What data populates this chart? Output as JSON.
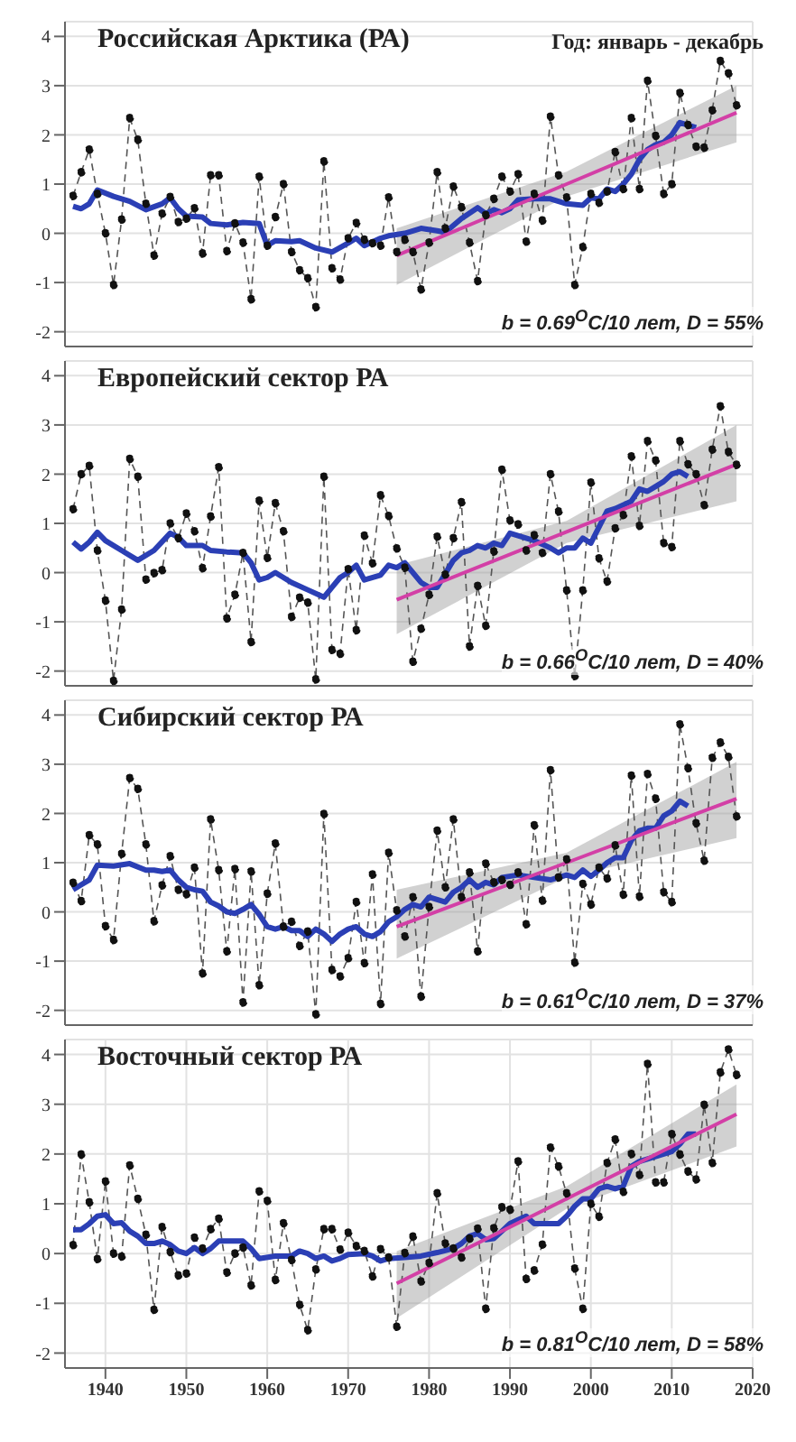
{
  "chart_data": [
    {
      "type": "line",
      "title": "Российская Арктика (РА)",
      "subtitle": "Год: январь - декабрь",
      "annotations": [
        "b = 0.69$^{O}$C/10 лет, D = 55%"
      ],
      "xlim": [
        1935,
        2020
      ],
      "xticks": [
        1940,
        1950,
        1960,
        1970,
        1980,
        1990,
        2000,
        2010,
        2020
      ],
      "ylim": [
        -2.3,
        4.3
      ],
      "yticks": [
        -2,
        -1,
        0,
        1,
        2,
        3,
        4
      ],
      "grid": true,
      "tick_labels": "y",
      "x": [
        1936,
        1937,
        1938,
        1939,
        1940,
        1941,
        1942,
        1943,
        1944,
        1945,
        1946,
        1947,
        1948,
        1949,
        1950,
        1951,
        1952,
        1953,
        1954,
        1955,
        1956,
        1957,
        1958,
        1959,
        1960,
        1961,
        1962,
        1963,
        1964,
        1965,
        1966,
        1967,
        1968,
        1969,
        1970,
        1971,
        1972,
        1973,
        1974,
        1975,
        1976,
        1977,
        1978,
        1979,
        1980,
        1981,
        1982,
        1983,
        1984,
        1985,
        1986,
        1987,
        1988,
        1989,
        1990,
        1991,
        1992,
        1993,
        1994,
        1995,
        1996,
        1997,
        1998,
        1999,
        2000,
        2001,
        2002,
        2003,
        2004,
        2005,
        2006,
        2007,
        2008,
        2009,
        2010,
        2011,
        2012,
        2013,
        2014,
        2015,
        2016,
        2017,
        2018
      ],
      "series": [
        {
          "color": "#555555",
          "marker": "circle",
          "line_style": "dashed",
          "values": [
            0.76,
            1.24,
            1.7,
            0.8,
            0.0,
            -1.05,
            0.28,
            2.34,
            1.9,
            0.6,
            -0.45,
            0.4,
            0.74,
            0.23,
            0.3,
            0.51,
            -0.41,
            1.18,
            1.18,
            -0.36,
            0.2,
            -0.19,
            -1.34,
            1.15,
            -0.25,
            0.33,
            1.0,
            -0.38,
            -0.75,
            -0.91,
            -1.5,
            1.46,
            -0.71,
            -0.94,
            -0.1,
            0.21,
            -0.13,
            -0.2,
            -0.25,
            0.73,
            -0.38,
            -0.13,
            -0.38,
            -1.14,
            -0.19,
            1.24,
            0.1,
            0.95,
            0.53,
            -0.19,
            -0.97,
            0.37,
            0.7,
            1.15,
            0.85,
            1.2,
            -0.17,
            0.8,
            0.26,
            2.37,
            1.18,
            0.73,
            -1.05,
            -0.28,
            0.8,
            0.62,
            0.85,
            1.65,
            0.9,
            2.34,
            0.9,
            3.1,
            1.98,
            0.8,
            1.0,
            2.85,
            2.2,
            1.76,
            1.74,
            2.5,
            3.5,
            3.25,
            2.6
          ]
        },
        {
          "color": "#2b3fb5",
          "marker": "none",
          "line_style": "solid",
          "x": [
            1936,
            1937,
            1938,
            1939,
            1941,
            1943,
            1945,
            1947,
            1948,
            1949,
            1950,
            1952,
            1953,
            1955,
            1957,
            1959,
            1960,
            1961,
            1963,
            1964,
            1966,
            1968,
            1970,
            1971,
            1972,
            1974,
            1975,
            1977,
            1979,
            1981,
            1982,
            1984,
            1986,
            1987,
            1988,
            1989,
            1990,
            1991,
            1993,
            1995,
            1997,
            1999,
            2000,
            2001,
            2002,
            2003,
            2004,
            2005,
            2006,
            2007,
            2008,
            2009,
            2010,
            2011,
            2012,
            2013
          ],
          "values": [
            0.55,
            0.5,
            0.6,
            0.88,
            0.75,
            0.65,
            0.48,
            0.6,
            0.72,
            0.5,
            0.35,
            0.33,
            0.2,
            0.17,
            0.22,
            0.2,
            -0.25,
            -0.15,
            -0.17,
            -0.15,
            -0.3,
            -0.38,
            -0.2,
            -0.1,
            -0.25,
            -0.1,
            -0.05,
            0.0,
            0.1,
            0.05,
            0.02,
            0.3,
            0.52,
            0.4,
            0.48,
            0.42,
            0.5,
            0.68,
            0.7,
            0.7,
            0.6,
            0.57,
            0.72,
            0.7,
            0.9,
            0.85,
            1.0,
            1.2,
            1.5,
            1.7,
            1.8,
            1.85,
            2.0,
            2.25,
            2.2,
            2.15
          ]
        },
        {
          "color": "#d33fa6",
          "marker": "none",
          "line_style": "solid",
          "x": [
            1976,
            1997,
            2018
          ],
          "values": [
            -0.45,
            1.0,
            2.45
          ],
          "lower": [
            -1.05,
            0.75,
            1.85
          ],
          "upper": [
            0.1,
            1.25,
            3.0
          ]
        }
      ]
    },
    {
      "type": "line",
      "title": "Европейский сектор РА",
      "annotations": [
        "b = 0.66$^{O}$C/10 лет, D = 40%"
      ],
      "xlim": [
        1935,
        2020
      ],
      "xticks": [
        1940,
        1950,
        1960,
        1970,
        1980,
        1990,
        2000,
        2010,
        2020
      ],
      "ylim": [
        -2.3,
        4.3
      ],
      "yticks": [
        -2,
        -1,
        0,
        1,
        2,
        3,
        4
      ],
      "grid": true,
      "tick_labels": "y",
      "x": [
        1936,
        1937,
        1938,
        1939,
        1940,
        1941,
        1942,
        1943,
        1944,
        1945,
        1946,
        1947,
        1948,
        1949,
        1950,
        1951,
        1952,
        1953,
        1954,
        1955,
        1956,
        1957,
        1958,
        1959,
        1960,
        1961,
        1962,
        1963,
        1964,
        1965,
        1966,
        1967,
        1968,
        1969,
        1970,
        1971,
        1972,
        1973,
        1974,
        1975,
        1976,
        1977,
        1978,
        1979,
        1980,
        1981,
        1982,
        1983,
        1984,
        1985,
        1986,
        1987,
        1988,
        1989,
        1990,
        1991,
        1992,
        1993,
        1994,
        1995,
        1996,
        1997,
        1998,
        1999,
        2000,
        2001,
        2002,
        2003,
        2004,
        2005,
        2006,
        2007,
        2008,
        2009,
        2010,
        2011,
        2012,
        2013,
        2014,
        2015,
        2016,
        2017,
        2018
      ],
      "series": [
        {
          "color": "#555555",
          "marker": "circle",
          "line_style": "dashed",
          "values": [
            1.29,
            2.0,
            2.17,
            0.45,
            -0.57,
            -2.2,
            -0.75,
            2.31,
            1.95,
            -0.14,
            -0.01,
            0.05,
            1.0,
            0.7,
            1.2,
            0.84,
            0.09,
            1.14,
            2.14,
            -0.93,
            -0.45,
            0.4,
            -1.41,
            1.46,
            0.3,
            1.41,
            0.84,
            -0.9,
            -0.51,
            -0.61,
            -2.17,
            1.95,
            -1.57,
            -1.65,
            0.07,
            -1.17,
            0.75,
            0.19,
            1.57,
            1.15,
            0.49,
            0.1,
            -1.81,
            -1.14,
            -0.45,
            0.73,
            -0.04,
            0.7,
            1.43,
            -1.5,
            -0.27,
            -1.08,
            0.43,
            2.09,
            1.06,
            0.98,
            0.45,
            0.76,
            0.4,
            2.0,
            1.24,
            -0.36,
            -2.1,
            -0.36,
            1.83,
            0.29,
            -0.18,
            0.9,
            1.17,
            2.36,
            0.95,
            2.67,
            2.28,
            0.6,
            0.52,
            2.67,
            2.2,
            2.0,
            1.37,
            2.5,
            3.38,
            2.45,
            2.19
          ]
        },
        {
          "color": "#2b3fb5",
          "marker": "none",
          "line_style": "solid",
          "x": [
            1936,
            1937,
            1938,
            1939,
            1940,
            1942,
            1944,
            1946,
            1948,
            1949,
            1950,
            1952,
            1953,
            1955,
            1957,
            1958,
            1959,
            1960,
            1961,
            1963,
            1965,
            1967,
            1968,
            1969,
            1970,
            1971,
            1972,
            1974,
            1975,
            1976,
            1977,
            1979,
            1980,
            1981,
            1983,
            1984,
            1985,
            1986,
            1987,
            1988,
            1989,
            1990,
            1991,
            1993,
            1995,
            1996,
            1997,
            1998,
            1999,
            2000,
            2002,
            2003,
            2005,
            2006,
            2007,
            2008,
            2009,
            2010,
            2011,
            2012
          ],
          "values": [
            0.62,
            0.48,
            0.62,
            0.82,
            0.65,
            0.45,
            0.25,
            0.45,
            0.8,
            0.72,
            0.55,
            0.55,
            0.45,
            0.42,
            0.4,
            0.2,
            -0.15,
            -0.1,
            0.0,
            -0.2,
            -0.35,
            -0.5,
            -0.3,
            -0.1,
            0.0,
            0.15,
            -0.15,
            -0.05,
            0.15,
            0.1,
            0.2,
            -0.2,
            -0.3,
            -0.3,
            0.25,
            0.4,
            0.45,
            0.55,
            0.5,
            0.6,
            0.55,
            0.8,
            0.75,
            0.65,
            0.5,
            0.4,
            0.5,
            0.5,
            0.7,
            0.6,
            1.25,
            1.3,
            1.45,
            1.7,
            1.65,
            1.75,
            1.85,
            2.0,
            2.05,
            1.95
          ]
        },
        {
          "color": "#d33fa6",
          "marker": "none",
          "line_style": "solid",
          "x": [
            1976,
            1997,
            2018
          ],
          "values": [
            -0.55,
            0.83,
            2.2
          ],
          "lower": [
            -1.25,
            0.6,
            1.45
          ],
          "upper": [
            0.15,
            1.05,
            3.0
          ]
        }
      ]
    },
    {
      "type": "line",
      "title": "Сибирский сектор РА",
      "annotations": [
        "b = 0.61$^{O}$C/10 лет, D = 37%"
      ],
      "xlim": [
        1935,
        2020
      ],
      "xticks": [
        1940,
        1950,
        1960,
        1970,
        1980,
        1990,
        2000,
        2010,
        2020
      ],
      "ylim": [
        -2.3,
        4.3
      ],
      "yticks": [
        -2,
        -1,
        0,
        1,
        2,
        3,
        4
      ],
      "grid": true,
      "tick_labels": "y",
      "x": [
        1936,
        1937,
        1938,
        1939,
        1940,
        1941,
        1942,
        1943,
        1944,
        1945,
        1946,
        1947,
        1948,
        1949,
        1950,
        1951,
        1952,
        1953,
        1954,
        1955,
        1956,
        1957,
        1958,
        1959,
        1960,
        1961,
        1962,
        1963,
        1964,
        1965,
        1966,
        1967,
        1968,
        1969,
        1970,
        1971,
        1972,
        1973,
        1974,
        1975,
        1976,
        1977,
        1978,
        1979,
        1980,
        1981,
        1982,
        1983,
        1984,
        1985,
        1986,
        1987,
        1988,
        1989,
        1990,
        1991,
        1992,
        1993,
        1994,
        1995,
        1996,
        1997,
        1998,
        1999,
        2000,
        2001,
        2002,
        2003,
        2004,
        2005,
        2006,
        2007,
        2008,
        2009,
        2010,
        2011,
        2012,
        2013,
        2014,
        2015,
        2016,
        2017,
        2018
      ],
      "series": [
        {
          "color": "#555555",
          "marker": "circle",
          "line_style": "dashed",
          "values": [
            0.59,
            0.22,
            1.56,
            1.37,
            -0.29,
            -0.57,
            1.18,
            2.72,
            2.5,
            1.37,
            -0.19,
            0.54,
            1.13,
            0.45,
            0.36,
            0.9,
            -1.25,
            1.88,
            0.85,
            -0.8,
            0.87,
            -1.84,
            0.82,
            -1.49,
            0.37,
            1.39,
            -0.3,
            -0.2,
            -0.69,
            -0.4,
            -2.08,
            1.99,
            -1.18,
            -1.31,
            -0.94,
            0.2,
            -1.04,
            0.76,
            -1.87,
            1.2,
            0.03,
            -0.5,
            0.3,
            -1.72,
            0.1,
            1.65,
            0.5,
            1.88,
            0.3,
            0.8,
            -0.8,
            0.98,
            0.6,
            0.65,
            0.55,
            0.8,
            -0.25,
            1.76,
            0.23,
            2.88,
            0.7,
            1.07,
            -1.03,
            0.57,
            0.15,
            0.9,
            0.68,
            1.35,
            0.35,
            2.77,
            0.31,
            2.8,
            2.3,
            0.4,
            0.2,
            3.81,
            2.92,
            1.8,
            1.04,
            3.13,
            3.44,
            3.15,
            1.94
          ]
        },
        {
          "color": "#2b3fb5",
          "marker": "none",
          "line_style": "solid",
          "x": [
            1936,
            1937,
            1938,
            1939,
            1941,
            1943,
            1945,
            1946,
            1947,
            1948,
            1949,
            1950,
            1951,
            1952,
            1953,
            1954,
            1955,
            1956,
            1957,
            1958,
            1959,
            1960,
            1961,
            1962,
            1963,
            1964,
            1965,
            1966,
            1967,
            1968,
            1969,
            1970,
            1971,
            1972,
            1973,
            1974,
            1975,
            1976,
            1977,
            1978,
            1979,
            1980,
            1981,
            1982,
            1983,
            1984,
            1985,
            1986,
            1987,
            1988,
            1989,
            1991,
            1993,
            1995,
            1996,
            1997,
            1998,
            1999,
            2000,
            2001,
            2002,
            2003,
            2004,
            2005,
            2006,
            2007,
            2008,
            2009,
            2010,
            2011,
            2012
          ],
          "values": [
            0.45,
            0.55,
            0.65,
            0.95,
            0.93,
            0.98,
            0.85,
            0.85,
            0.82,
            0.85,
            0.65,
            0.5,
            0.45,
            0.42,
            0.2,
            0.12,
            0.0,
            -0.03,
            0.05,
            0.15,
            -0.05,
            -0.3,
            -0.35,
            -0.3,
            -0.38,
            -0.38,
            -0.5,
            -0.35,
            -0.45,
            -0.6,
            -0.45,
            -0.35,
            -0.3,
            -0.45,
            -0.5,
            -0.4,
            -0.2,
            -0.1,
            0.05,
            0.15,
            0.1,
            0.3,
            0.25,
            0.2,
            0.4,
            0.5,
            0.65,
            0.5,
            0.6,
            0.55,
            0.7,
            0.75,
            0.7,
            0.65,
            0.7,
            0.75,
            0.7,
            0.85,
            0.72,
            0.85,
            1.0,
            1.1,
            1.1,
            1.45,
            1.65,
            1.7,
            1.7,
            1.95,
            2.05,
            2.25,
            2.15
          ]
        },
        {
          "color": "#d33fa6",
          "marker": "none",
          "line_style": "solid",
          "x": [
            1976,
            1997,
            2018
          ],
          "values": [
            -0.3,
            1.0,
            2.3
          ],
          "lower": [
            -0.95,
            0.7,
            1.5
          ],
          "upper": [
            0.45,
            1.2,
            3.05
          ]
        }
      ]
    },
    {
      "type": "line",
      "title": "Восточный сектор РА",
      "annotations": [
        "b = 0.81$^{O}$C/10 лет, D = 58%"
      ],
      "xlim": [
        1935,
        2020
      ],
      "xticks": [
        1940,
        1950,
        1960,
        1970,
        1980,
        1990,
        2000,
        2010,
        2020
      ],
      "ylim": [
        -2.3,
        4.3
      ],
      "yticks": [
        -2,
        -1,
        0,
        1,
        2,
        3,
        4
      ],
      "grid": true,
      "x": [
        1936,
        1937,
        1938,
        1939,
        1940,
        1941,
        1942,
        1943,
        1944,
        1945,
        1946,
        1947,
        1948,
        1949,
        1950,
        1951,
        1952,
        1953,
        1954,
        1955,
        1956,
        1957,
        1958,
        1959,
        1960,
        1961,
        1962,
        1963,
        1964,
        1965,
        1966,
        1967,
        1968,
        1969,
        1970,
        1971,
        1972,
        1973,
        1974,
        1975,
        1976,
        1977,
        1978,
        1979,
        1980,
        1981,
        1982,
        1983,
        1984,
        1985,
        1986,
        1987,
        1988,
        1989,
        1990,
        1991,
        1992,
        1993,
        1994,
        1995,
        1996,
        1997,
        1998,
        1999,
        2000,
        2001,
        2002,
        2003,
        2004,
        2005,
        2006,
        2007,
        2008,
        2009,
        2010,
        2011,
        2012,
        2013,
        2014,
        2015,
        2016,
        2017,
        2018
      ],
      "series": [
        {
          "color": "#555555",
          "marker": "circle",
          "line_style": "dashed",
          "values": [
            0.17,
            1.99,
            1.03,
            -0.11,
            1.45,
            0.0,
            -0.06,
            1.77,
            1.1,
            0.38,
            -1.13,
            0.53,
            0.03,
            -0.44,
            -0.4,
            0.32,
            0.1,
            0.49,
            0.7,
            -0.38,
            0.0,
            0.12,
            -0.64,
            1.25,
            1.06,
            -0.53,
            0.61,
            -0.13,
            -1.03,
            -1.54,
            -0.32,
            0.49,
            0.49,
            0.08,
            0.42,
            0.15,
            0.05,
            -0.46,
            0.09,
            -0.08,
            -1.47,
            0.01,
            0.34,
            -0.56,
            -0.19,
            1.21,
            0.2,
            0.1,
            -0.08,
            0.3,
            0.5,
            -1.11,
            0.51,
            0.93,
            0.88,
            1.85,
            -0.51,
            -0.34,
            0.18,
            2.13,
            1.75,
            1.21,
            -0.3,
            -1.11,
            1.0,
            0.74,
            1.82,
            2.29,
            1.24,
            2.0,
            1.58,
            3.81,
            1.43,
            1.43,
            2.4,
            1.99,
            1.65,
            1.49,
            2.99,
            1.82,
            3.64,
            4.1,
            3.59
          ]
        },
        {
          "color": "#2b3fb5",
          "marker": "none",
          "line_style": "solid",
          "x": [
            1936,
            1937,
            1938,
            1939,
            1940,
            1941,
            1942,
            1943,
            1944,
            1945,
            1946,
            1947,
            1948,
            1949,
            1950,
            1951,
            1952,
            1953,
            1954,
            1956,
            1957,
            1958,
            1959,
            1961,
            1963,
            1964,
            1965,
            1966,
            1967,
            1968,
            1969,
            1970,
            1972,
            1973,
            1974,
            1975,
            1977,
            1979,
            1981,
            1983,
            1984,
            1985,
            1986,
            1987,
            1988,
            1989,
            1990,
            1991,
            1992,
            1993,
            1995,
            1996,
            1997,
            1998,
            1999,
            2000,
            2001,
            2002,
            2003,
            2004,
            2005,
            2006,
            2007,
            2008,
            2009,
            2010,
            2011,
            2012,
            2013
          ],
          "values": [
            0.48,
            0.48,
            0.6,
            0.75,
            0.78,
            0.6,
            0.62,
            0.45,
            0.35,
            0.2,
            0.2,
            0.25,
            0.18,
            0.05,
            0.0,
            0.12,
            0.0,
            0.1,
            0.25,
            0.25,
            0.25,
            0.1,
            -0.1,
            -0.05,
            -0.05,
            0.05,
            0.0,
            -0.1,
            -0.05,
            -0.15,
            -0.1,
            -0.02,
            0.0,
            -0.05,
            -0.15,
            -0.1,
            -0.08,
            -0.05,
            0.02,
            0.1,
            0.2,
            0.35,
            0.4,
            0.28,
            0.3,
            0.45,
            0.6,
            0.68,
            0.75,
            0.6,
            0.6,
            0.6,
            0.75,
            0.95,
            1.1,
            1.1,
            1.3,
            1.35,
            1.3,
            1.35,
            1.75,
            1.85,
            1.9,
            1.95,
            2.0,
            2.05,
            2.2,
            2.4,
            2.4
          ]
        },
        {
          "color": "#d33fa6",
          "marker": "none",
          "line_style": "solid",
          "x": [
            1976,
            1997,
            2018
          ],
          "values": [
            -0.6,
            1.1,
            2.8
          ],
          "lower": [
            -1.3,
            0.9,
            2.15
          ],
          "upper": [
            0.05,
            1.35,
            3.4
          ]
        }
      ]
    }
  ]
}
